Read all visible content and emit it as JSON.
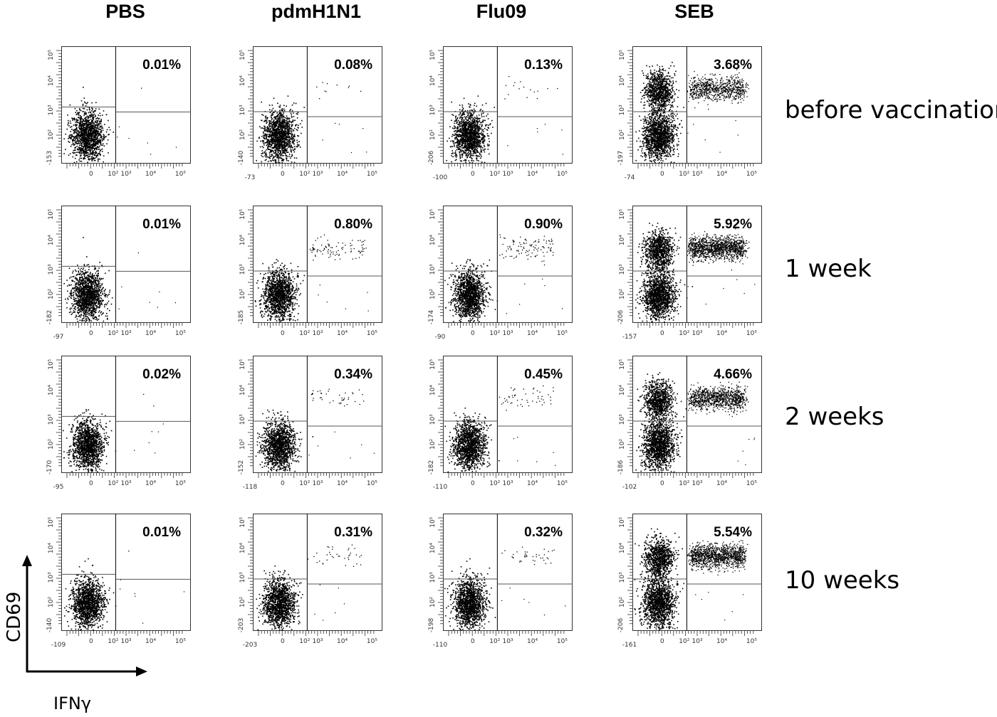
{
  "chart_data": {
    "type": "scatter",
    "columns": [
      "PBS",
      "pdmH1N1",
      "Flu09",
      "SEB"
    ],
    "rows": [
      "before vaccination",
      "1 week",
      "2 weeks",
      "10 weeks"
    ],
    "quadrant_percentages": [
      [
        "0.01%",
        "0.08%",
        "0.13%",
        "3.68%"
      ],
      [
        "0.01%",
        "0.80%",
        "0.90%",
        "5.92%"
      ],
      [
        "0.02%",
        "0.34%",
        "0.45%",
        "4.66%"
      ],
      [
        "0.01%",
        "0.31%",
        "0.32%",
        "5.54%"
      ]
    ],
    "values_percent": [
      [
        0.01,
        0.08,
        0.13,
        3.68
      ],
      [
        0.01,
        0.8,
        0.9,
        5.92
      ],
      [
        0.02,
        0.34,
        0.45,
        4.66
      ],
      [
        0.01,
        0.31,
        0.32,
        5.54
      ]
    ],
    "xlabel": "IFNγ",
    "ylabel": "CD69",
    "x_ticks": [
      "0",
      "10²",
      "10³",
      "10⁴",
      "10⁵"
    ],
    "y_ticks": [
      "10²",
      "10³",
      "10⁴",
      "10⁵"
    ],
    "x_min_labels": [
      [
        "",
        "-73",
        "-100",
        "-74"
      ],
      [
        "-97",
        "",
        "-90",
        "-157"
      ],
      [
        "-95",
        "-118",
        "-110",
        "-102"
      ],
      [
        "-109",
        "-203",
        "-110",
        "-161"
      ]
    ],
    "y_min_labels": [
      [
        "-153",
        "-140",
        "-206",
        "-197"
      ],
      [
        "-182",
        "-185",
        "-174",
        "-206"
      ],
      [
        "-170",
        "-152",
        "-182",
        "-186"
      ],
      [
        "-140",
        "-203",
        "-198",
        "-206"
      ]
    ]
  }
}
